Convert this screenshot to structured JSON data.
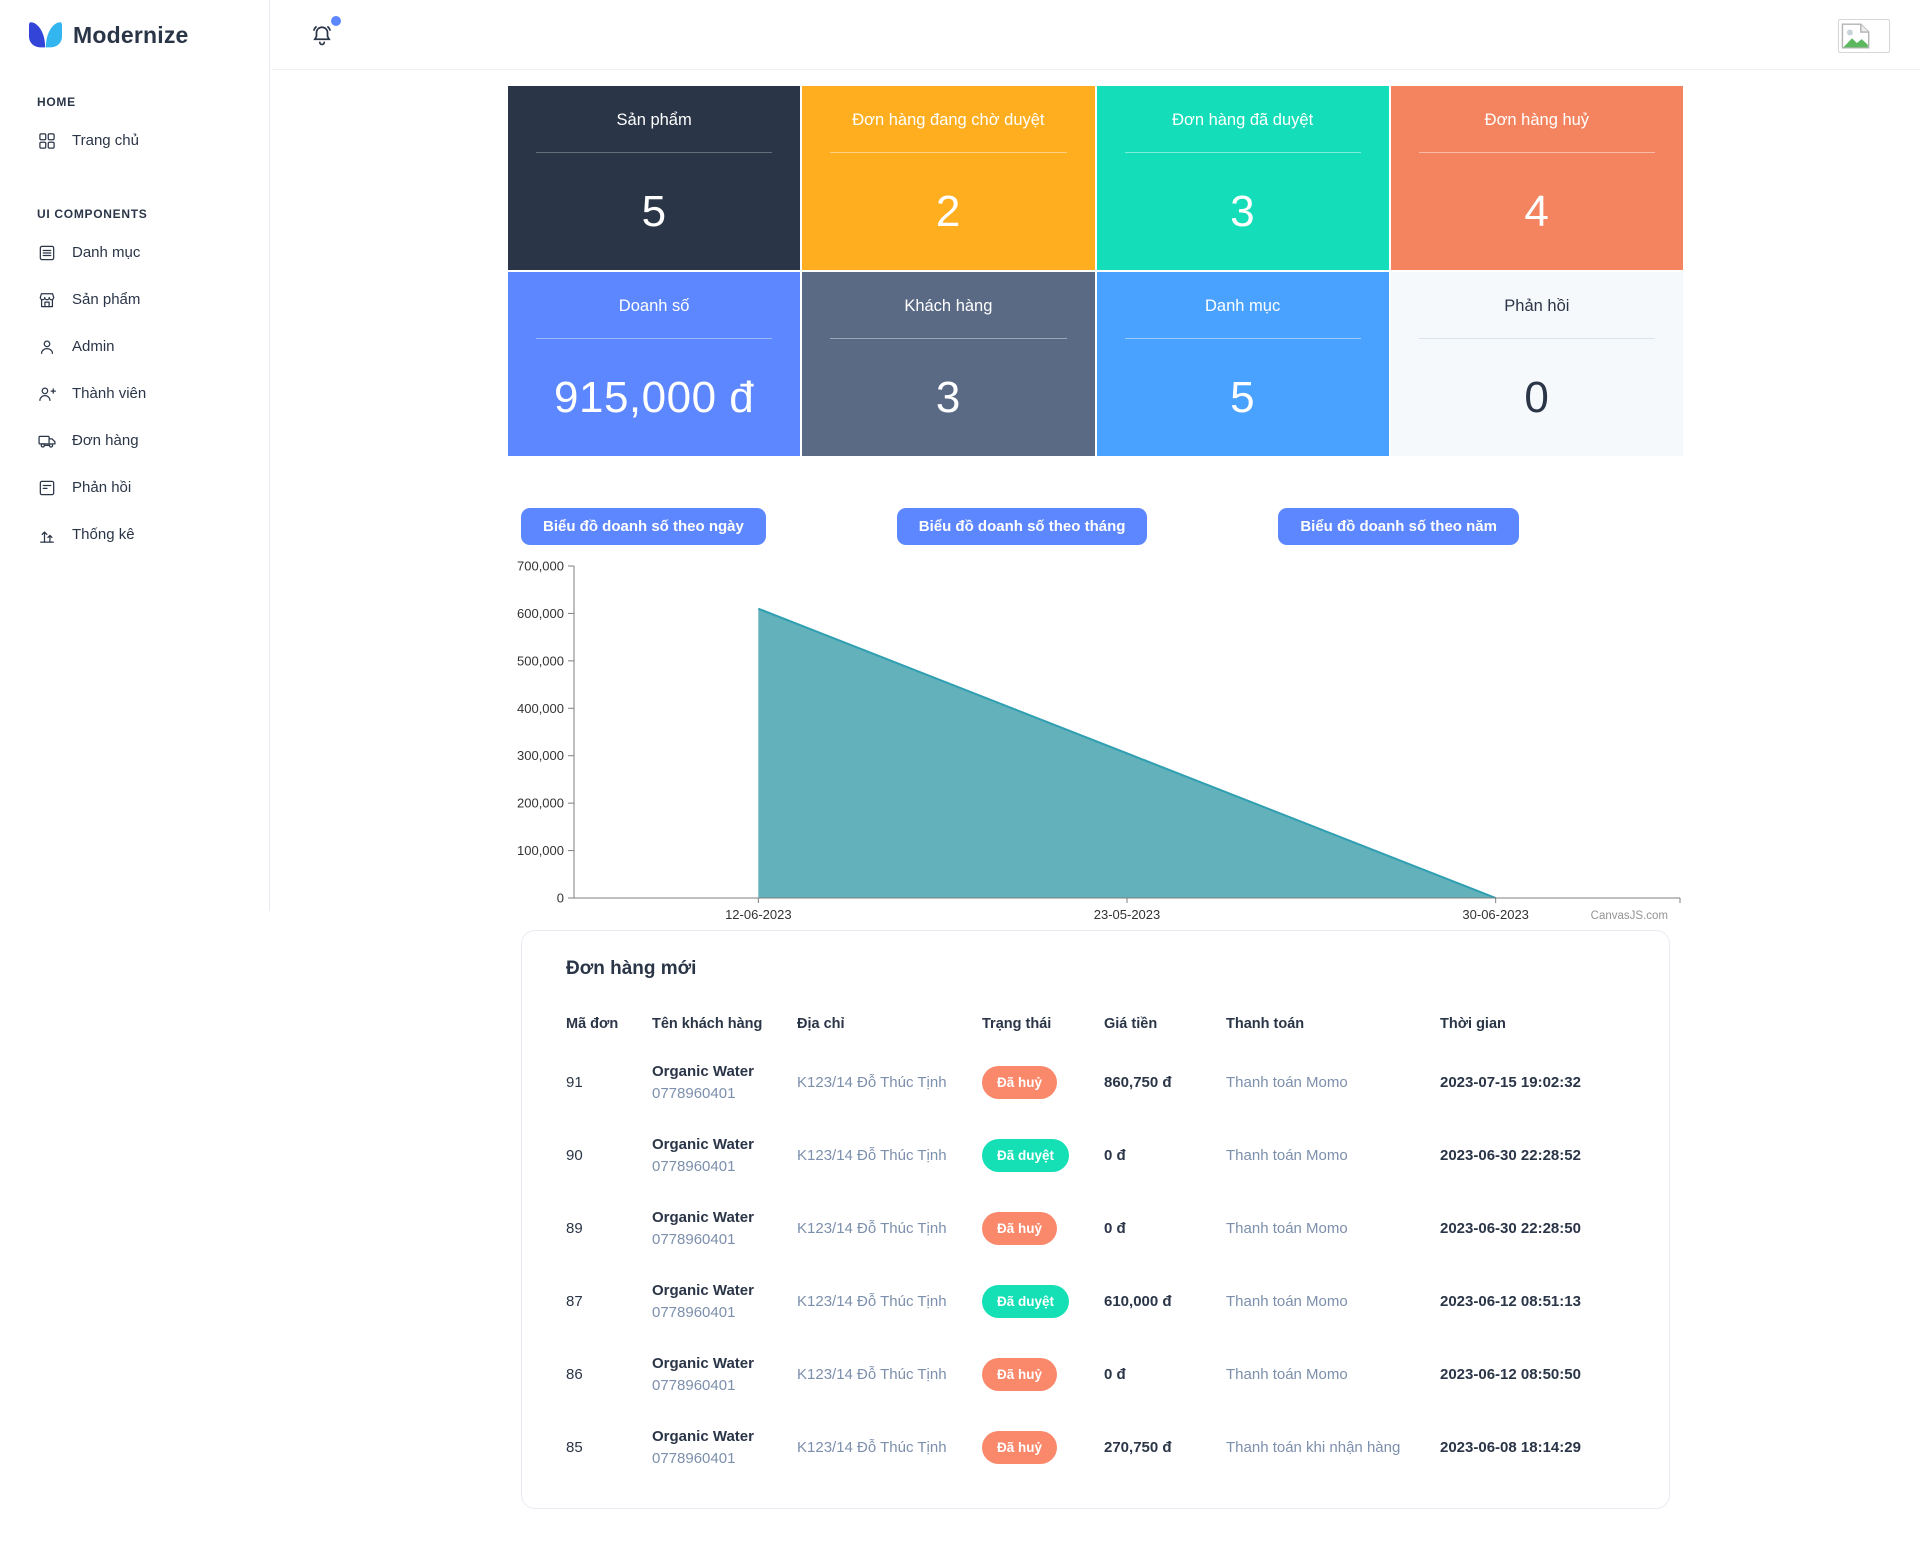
{
  "brand": {
    "name": "Modernize"
  },
  "topbar": {
    "bell_icon": "bell",
    "notification_dot_color": "#5d87ff",
    "avatar": "broken-image"
  },
  "sidebar": {
    "sections": [
      {
        "label": "HOME",
        "items": [
          {
            "name": "home",
            "icon": "grid",
            "label": "Trang chủ"
          }
        ]
      },
      {
        "label": "UI COMPONENTS",
        "items": [
          {
            "name": "categories",
            "icon": "list",
            "label": "Danh mục"
          },
          {
            "name": "products",
            "icon": "store",
            "label": "Sản phẩm"
          },
          {
            "name": "admin",
            "icon": "user",
            "label": "Admin"
          },
          {
            "name": "members",
            "icon": "user-plus",
            "label": "Thành viên"
          },
          {
            "name": "orders",
            "icon": "truck",
            "label": "Đơn hàng"
          },
          {
            "name": "feedback",
            "icon": "feedback",
            "label": "Phản hồi"
          },
          {
            "name": "statistics",
            "icon": "stats",
            "label": "Thống kê"
          }
        ]
      }
    ]
  },
  "stats": [
    {
      "name": "products",
      "label": "Sản phẩm",
      "value": "5",
      "bg": "#2a3547",
      "fg": "#ffffff",
      "divider": "rgba(255,255,255,0.28)"
    },
    {
      "name": "orders-pending",
      "label": "Đơn hàng đang chờ duyệt",
      "value": "2",
      "bg": "#ffae1f",
      "fg": "#ffffff",
      "divider": "rgba(255,255,255,0.45)"
    },
    {
      "name": "orders-approved",
      "label": "Đơn hàng đã duyệt",
      "value": "3",
      "bg": "#13deb9",
      "fg": "#ffffff",
      "divider": "rgba(255,255,255,0.45)"
    },
    {
      "name": "orders-cancelled",
      "label": "Đơn hàng huỷ",
      "value": "4",
      "bg": "#f4845f",
      "fg": "#ffffff",
      "divider": "rgba(255,255,255,0.45)"
    },
    {
      "name": "revenue",
      "label": "Doanh số",
      "value": "915,000 đ",
      "bg": "#5d87ff",
      "fg": "#ffffff",
      "divider": "rgba(255,255,255,0.40)"
    },
    {
      "name": "customers",
      "label": "Khách hàng",
      "value": "3",
      "bg": "#5a6a85",
      "fg": "#ffffff",
      "divider": "rgba(255,255,255,0.40)"
    },
    {
      "name": "categories",
      "label": "Danh mục",
      "value": "5",
      "bg": "#49a2ff",
      "fg": "#ffffff",
      "divider": "rgba(255,255,255,0.45)"
    },
    {
      "name": "feedback",
      "label": "Phản hồi",
      "value": "0",
      "bg": "#f6f9fc",
      "fg": "#2a3547",
      "divider": "#dde3ea"
    }
  ],
  "chart_buttons": [
    {
      "name": "chart-daily-button",
      "label": "Biểu đồ doanh số theo ngày"
    },
    {
      "name": "chart-monthly-button",
      "label": "Biểu đồ doanh số theo tháng"
    },
    {
      "name": "chart-yearly-button",
      "label": "Biểu đồ doanh số theo năm"
    }
  ],
  "chart_data": {
    "type": "area",
    "title": "",
    "categories": [
      "12-06-2023",
      "23-05-2023",
      "30-06-2023"
    ],
    "values": [
      610000,
      305000,
      0
    ],
    "xlabel": "",
    "ylabel": "",
    "ylim": [
      0,
      700000
    ],
    "y_tick_step": 100000,
    "grid": false,
    "legend": "none",
    "fill_color": "#62b1bb",
    "line_color": "#2f9fb1",
    "axis_color": "#7f7f7f",
    "label_color": "#333333",
    "watermark": "CanvasJS.com"
  },
  "orders": {
    "title": "Đơn hàng mới",
    "columns": [
      "Mã đơn",
      "Tên khách hàng",
      "Địa chỉ",
      "Trạng thái",
      "Giá tiền",
      "Thanh toán",
      "Thời gian"
    ],
    "rows": [
      {
        "id": "91",
        "customer_name": "Organic Water",
        "customer_phone": "0778960401",
        "address": "K123/14 Đỗ Thúc Tịnh",
        "status": "Đã huỷ",
        "status_variant": "danger",
        "price": "860,750 đ",
        "payment": "Thanh toán Momo",
        "time": "2023-07-15 19:02:32"
      },
      {
        "id": "90",
        "customer_name": "Organic Water",
        "customer_phone": "0778960401",
        "address": "K123/14 Đỗ Thúc Tịnh",
        "status": "Đã duyệt",
        "status_variant": "success",
        "price": "0 đ",
        "payment": "Thanh toán Momo",
        "time": "2023-06-30 22:28:52"
      },
      {
        "id": "89",
        "customer_name": "Organic Water",
        "customer_phone": "0778960401",
        "address": "K123/14 Đỗ Thúc Tịnh",
        "status": "Đã huỷ",
        "status_variant": "danger",
        "price": "0 đ",
        "payment": "Thanh toán Momo",
        "time": "2023-06-30 22:28:50"
      },
      {
        "id": "87",
        "customer_name": "Organic Water",
        "customer_phone": "0778960401",
        "address": "K123/14 Đỗ Thúc Tịnh",
        "status": "Đã duyệt",
        "status_variant": "success",
        "price": "610,000 đ",
        "payment": "Thanh toán Momo",
        "time": "2023-06-12 08:51:13"
      },
      {
        "id": "86",
        "customer_name": "Organic Water",
        "customer_phone": "0778960401",
        "address": "K123/14 Đỗ Thúc Tịnh",
        "status": "Đã huỷ",
        "status_variant": "danger",
        "price": "0 đ",
        "payment": "Thanh toán Momo",
        "time": "2023-06-12 08:50:50"
      },
      {
        "id": "85",
        "customer_name": "Organic Water",
        "customer_phone": "0778960401",
        "address": "K123/14 Đỗ Thúc Tịnh",
        "status": "Đã huỷ",
        "status_variant": "danger",
        "price": "270,750 đ",
        "payment": "Thanh toán khi nhận hàng",
        "time": "2023-06-08 18:14:29"
      }
    ]
  },
  "colors": {
    "accent": "#5d87ff",
    "badge_danger": "#fa886b",
    "badge_success": "#15dfb5",
    "navy": "#2a3547"
  }
}
